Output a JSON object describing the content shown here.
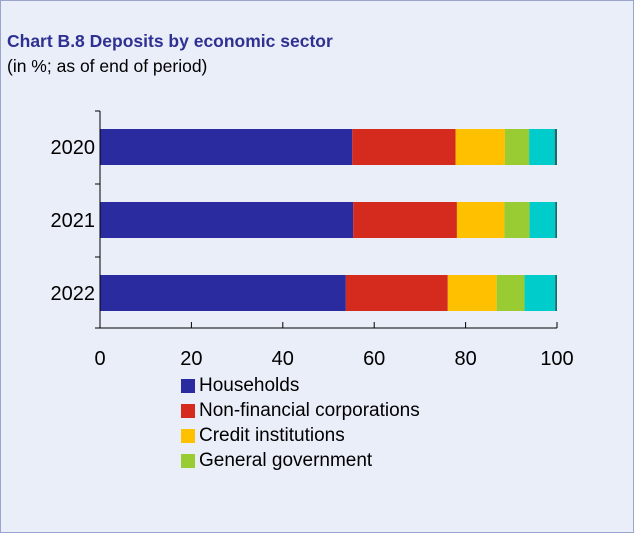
{
  "header": {
    "title": "Chart B.8 Deposits by economic sector",
    "subtitle": "(in %; as of end of period)"
  },
  "colors": {
    "frame_background": "#eaeef9",
    "frame_border": "#9aa5cf",
    "title": "#2e3191"
  },
  "chart_data": {
    "type": "bar",
    "orientation": "horizontal",
    "stacked": true,
    "title": "Chart B.8 Deposits by economic sector",
    "subtitle": "(in %; as of end of period)",
    "categories": [
      "2020",
      "2021",
      "2022"
    ],
    "xlim": [
      0,
      100
    ],
    "x_ticks": [
      0,
      20,
      40,
      60,
      80,
      100
    ],
    "grid": false,
    "legend_position": "bottom",
    "series": [
      {
        "name": "Households",
        "color": "#2b2ba0",
        "values": [
          55.2,
          55.4,
          53.8
        ]
      },
      {
        "name": "Non-financial corporations",
        "color": "#d42b1e",
        "values": [
          22.6,
          22.7,
          22.3
        ]
      },
      {
        "name": "Credit institutions",
        "color": "#ffc000",
        "values": [
          10.8,
          10.4,
          10.7
        ]
      },
      {
        "name": "General government",
        "color": "#99cc33",
        "values": [
          5.3,
          5.5,
          6.1
        ]
      },
      {
        "color": "#00cccc",
        "values": [
          5.6,
          5.6,
          6.7
        ]
      },
      {
        "color": "#1a6b6b",
        "values": [
          0.5,
          0.4,
          0.4
        ]
      }
    ]
  }
}
